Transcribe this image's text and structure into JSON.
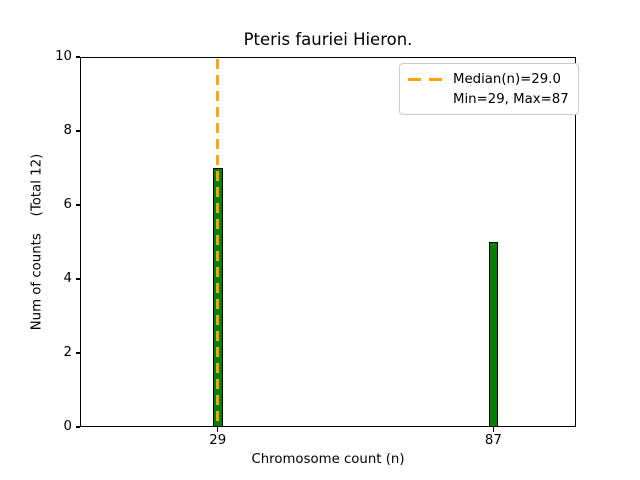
{
  "chart_data": {
    "type": "bar",
    "title": "Pteris fauriei Hieron.",
    "xlabel": "Chromosome count (n)",
    "ylabel": "Num of counts    (Total 12)",
    "categories": [
      29,
      87
    ],
    "values": [
      7,
      5
    ],
    "xlim": [
      0,
      104.4
    ],
    "ylim": [
      0,
      10
    ],
    "yticks": [
      0,
      2,
      4,
      6,
      8,
      10
    ],
    "xticks": [
      29,
      87
    ],
    "bar_width_data_units": 2,
    "grid": false,
    "median_line": {
      "x": 29,
      "style": "dashed"
    },
    "legend": {
      "position": "upper right",
      "entries": [
        {
          "label": "Median(n)=29.0",
          "marker": "orange-dashed-line"
        },
        {
          "label": "Min=29, Max=87",
          "marker": "none"
        }
      ]
    },
    "colors": {
      "bar_fill": "#008000",
      "bar_edge": "#000000",
      "median_line": "#FFA500",
      "axis": "#000000",
      "legend_border": "#cccccc",
      "background": "#ffffff",
      "text": "#000000"
    }
  }
}
